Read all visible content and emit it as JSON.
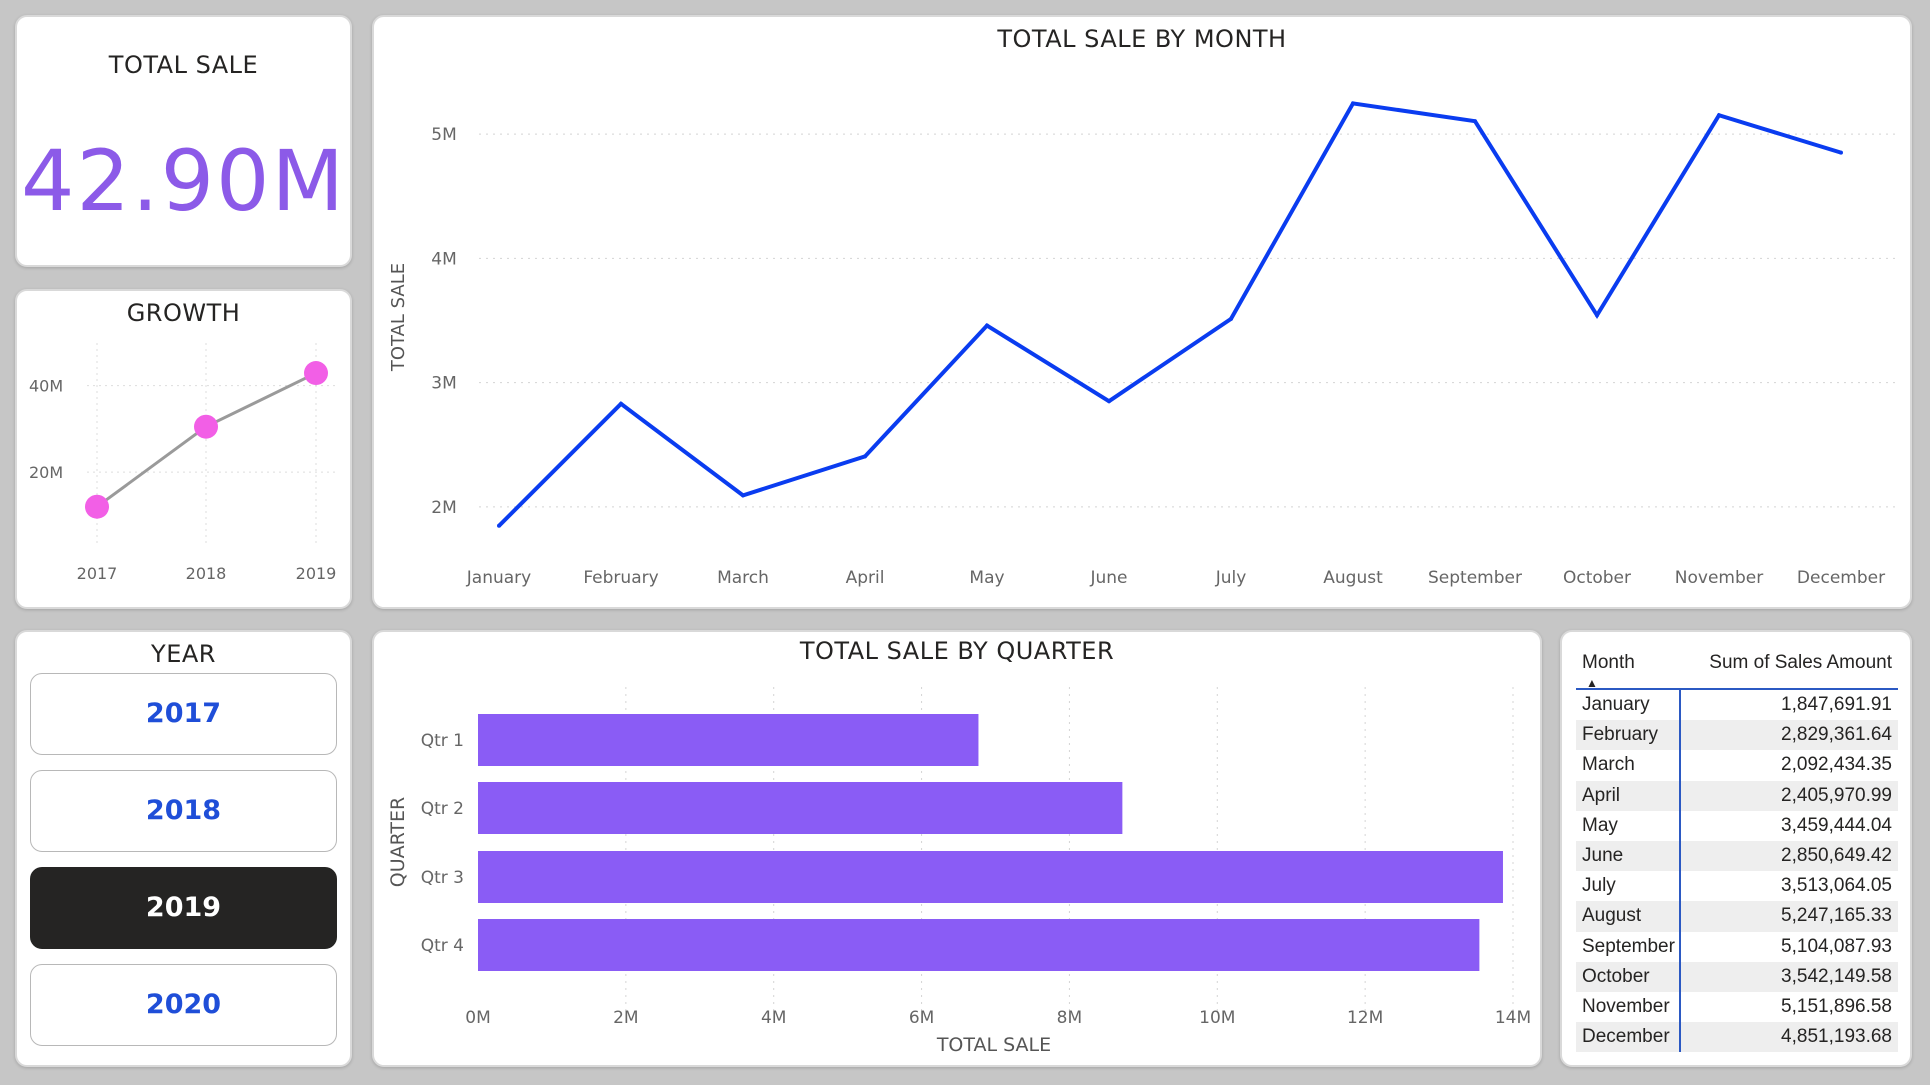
{
  "kpi": {
    "title": "TOTAL SALE",
    "value": "42.90M"
  },
  "growth": {
    "title": "GROWTH",
    "y_ticks": [
      "40M",
      "20M"
    ],
    "x_labels": [
      "2017",
      "2018",
      "2019"
    ]
  },
  "month_chart": {
    "title": "TOTAL SALE BY MONTH",
    "ylabel": "TOTAL SALE"
  },
  "year_slicer": {
    "title": "YEAR",
    "options": [
      "2017",
      "2018",
      "2019",
      "2020"
    ],
    "selected": "2019"
  },
  "quarter_chart": {
    "title": "TOTAL SALE BY QUARTER",
    "xlabel": "TOTAL SALE",
    "ylabel": "QUARTER"
  },
  "table": {
    "headers": {
      "month": "Month",
      "amount": "Sum of Sales Amount"
    },
    "rows": [
      {
        "month": "January",
        "amount": "1,847,691.91"
      },
      {
        "month": "February",
        "amount": "2,829,361.64"
      },
      {
        "month": "March",
        "amount": "2,092,434.35"
      },
      {
        "month": "April",
        "amount": "2,405,970.99"
      },
      {
        "month": "May",
        "amount": "3,459,444.04"
      },
      {
        "month": "June",
        "amount": "2,850,649.42"
      },
      {
        "month": "July",
        "amount": "3,513,064.05"
      },
      {
        "month": "August",
        "amount": "5,247,165.33"
      },
      {
        "month": "September",
        "amount": "5,104,087.93"
      },
      {
        "month": "October",
        "amount": "3,542,149.58"
      },
      {
        "month": "November",
        "amount": "5,151,896.58"
      },
      {
        "month": "December",
        "amount": "4,851,193.68"
      }
    ]
  },
  "colors": {
    "month_line": "#0a3cf0",
    "growth_line": "#9a9a9a",
    "growth_marker": "#f25fe6",
    "bar": "#8a5cf5",
    "kpi": "#8c5ae8",
    "slicer_text": "#1f4ed8"
  },
  "chart_data": [
    {
      "type": "line",
      "title": "GROWTH",
      "x": [
        "2017",
        "2018",
        "2019"
      ],
      "series": [
        {
          "values": [
            12,
            30.5,
            42.9
          ]
        }
      ],
      "y_ticks": [
        20,
        40
      ],
      "ylim": [
        5,
        48
      ],
      "y_unit": "M",
      "markers": true,
      "grid": true
    },
    {
      "type": "line",
      "title": "TOTAL SALE BY MONTH",
      "ylabel": "TOTAL SALE",
      "xlabel": "",
      "categories": [
        "January",
        "February",
        "March",
        "April",
        "May",
        "June",
        "July",
        "August",
        "September",
        "October",
        "November",
        "December"
      ],
      "series": [
        {
          "values": [
            1847691.91,
            2829361.64,
            2092434.35,
            2405970.99,
            3459444.04,
            2850649.42,
            3513064.05,
            5247165.33,
            5104087.93,
            3542149.58,
            5151896.58,
            4851193.68
          ]
        }
      ],
      "y_ticks": [
        2000000,
        3000000,
        4000000,
        5000000
      ],
      "y_tick_labels": [
        "2M",
        "3M",
        "4M",
        "5M"
      ],
      "ylim": [
        1500000,
        5500000
      ],
      "grid": true
    },
    {
      "type": "bar",
      "orientation": "horizontal",
      "title": "TOTAL SALE BY QUARTER",
      "xlabel": "TOTAL SALE",
      "ylabel": "QUARTER",
      "categories": [
        "Qtr 1",
        "Qtr 2",
        "Qtr 3",
        "Qtr 4"
      ],
      "values": [
        6769487.9,
        8716064.45,
        13864317.31,
        13545239.84
      ],
      "x_ticks": [
        0,
        2000000,
        4000000,
        6000000,
        8000000,
        10000000,
        12000000,
        14000000
      ],
      "x_tick_labels": [
        "0M",
        "2M",
        "4M",
        "6M",
        "8M",
        "10M",
        "12M",
        "14M"
      ],
      "xlim": [
        0,
        14000000
      ],
      "grid": true
    }
  ]
}
